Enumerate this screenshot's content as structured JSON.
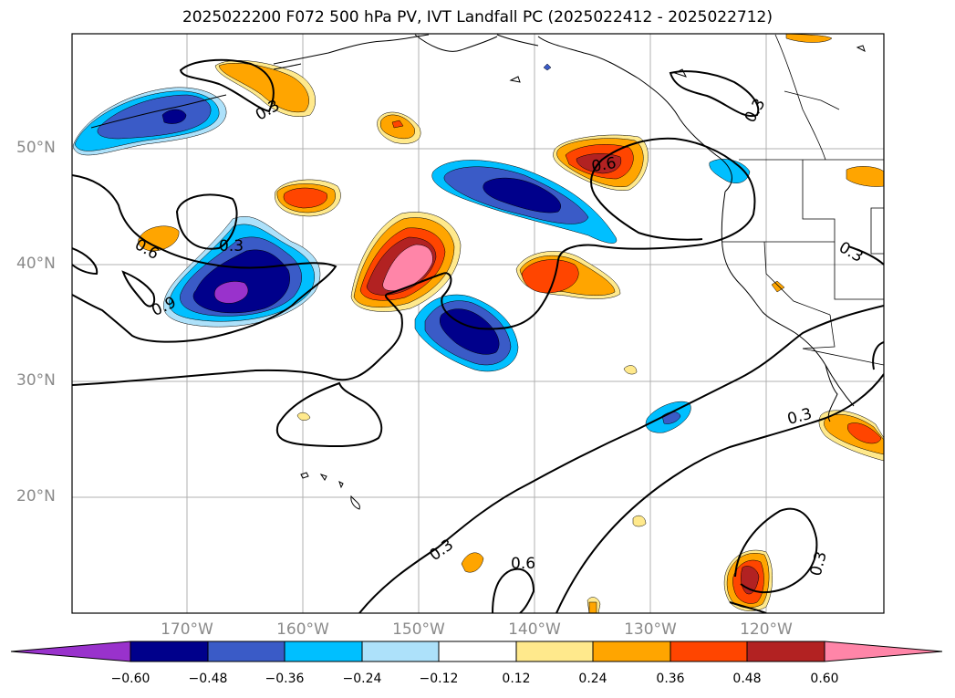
{
  "title": "2025022200 F072 500 hPa PV, IVT Landfall PC (2025022412 - 2025022712)",
  "lat_labels": [
    "50°N",
    "40°N",
    "30°N",
    "20°N"
  ],
  "lon_labels": [
    "170°W",
    "160°W",
    "150°W",
    "140°W",
    "130°W",
    "120°W"
  ],
  "contour_labels": [
    "0.3",
    "0.3",
    "0.6",
    "0.9",
    "0.3",
    "0.6",
    "0.3",
    "0.3",
    "0.3",
    "0.6",
    "0.3",
    "0.3"
  ],
  "colorbar": {
    "ticks": [
      "−0.60",
      "−0.48",
      "−0.36",
      "−0.24",
      "−0.12",
      "0.12",
      "0.24",
      "0.36",
      "0.48",
      "0.60"
    ],
    "colors": [
      "#9932CC",
      "#00008B",
      "#3A5BC7",
      "#00BFFF",
      "#ADE1FA",
      "#FFFFFF",
      "#FFE98C",
      "#FFA500",
      "#FF4500",
      "#B22222",
      "#FF85A8"
    ]
  }
}
